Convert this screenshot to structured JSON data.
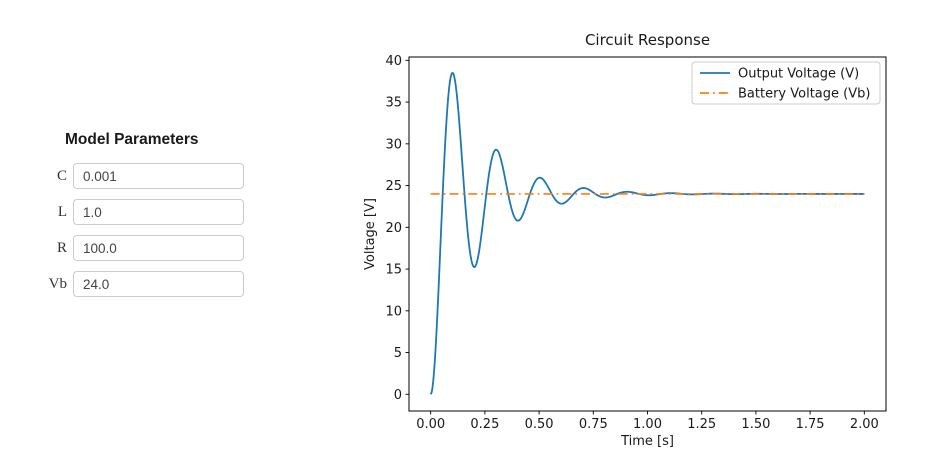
{
  "parameters": {
    "title": "Model Parameters",
    "fields": [
      {
        "label": "C",
        "value": "0.001"
      },
      {
        "label": "L",
        "value": "1.0"
      },
      {
        "label": "R",
        "value": "100.0"
      },
      {
        "label": "Vb",
        "value": "24.0"
      }
    ]
  },
  "chart_data": {
    "type": "line",
    "title": "Circuit Response",
    "xlabel": "Time [s]",
    "ylabel": "Voltage [V]",
    "xlim": [
      -0.1,
      2.1
    ],
    "ylim": [
      -2.0,
      40.4
    ],
    "grid": false,
    "x_ticks": {
      "values": [
        0,
        0.25,
        0.5,
        0.75,
        1.0,
        1.25,
        1.5,
        1.75,
        2.0
      ],
      "labels": [
        "0.00",
        "0.25",
        "0.50",
        "0.75",
        "1.00",
        "1.25",
        "1.50",
        "1.75",
        "2.00"
      ]
    },
    "y_ticks": {
      "values": [
        0,
        5,
        10,
        15,
        20,
        25,
        30,
        35,
        40
      ],
      "labels": [
        "0",
        "5",
        "10",
        "15",
        "20",
        "25",
        "30",
        "35",
        "40"
      ]
    },
    "axis_color": "#000000",
    "background": "#ffffff",
    "legend": {
      "position": "upper right",
      "border_color": "#cccccc",
      "entries": [
        {
          "label": "Output Voltage (V)",
          "color": "#1f77b4",
          "linestyle": "solid"
        },
        {
          "label": "Battery Voltage (Vb)",
          "color": "#ff7f0e",
          "linestyle": "dashdot"
        }
      ]
    },
    "series": [
      {
        "name": "Output Voltage (V)",
        "color": "#1f77b4",
        "linestyle": "solid",
        "linewidth": 1.8,
        "model": {
          "type": "underdamped_step_response",
          "formula": "V(t) = Vss * (1 - exp(-alpha*t) * (cos(omega_d*t) + (alpha/omega_d)*sin(omega_d*t)))",
          "steady_state": 24.0,
          "alpha": 5.0,
          "omega_d": 31.225,
          "t_start": 0.0,
          "t_end": 2.0,
          "samples": 500
        },
        "key_points": [
          [
            0,
            0
          ],
          [
            0.1,
            38.5
          ],
          [
            0.2,
            15.2
          ],
          [
            0.3,
            29.3
          ],
          [
            0.4,
            20.8
          ],
          [
            0.5,
            25.9
          ],
          [
            0.6,
            22.8
          ],
          [
            0.7,
            24.7
          ],
          [
            0.8,
            23.6
          ],
          [
            0.91,
            24.3
          ],
          [
            1.01,
            23.8
          ],
          [
            2.0,
            24.0
          ]
        ]
      },
      {
        "name": "Battery Voltage (Vb)",
        "color": "#ff7f0e",
        "linestyle": "dashdot",
        "linewidth": 1.7,
        "constant": 24.0,
        "x_range": [
          0.0,
          2.0
        ]
      }
    ]
  }
}
